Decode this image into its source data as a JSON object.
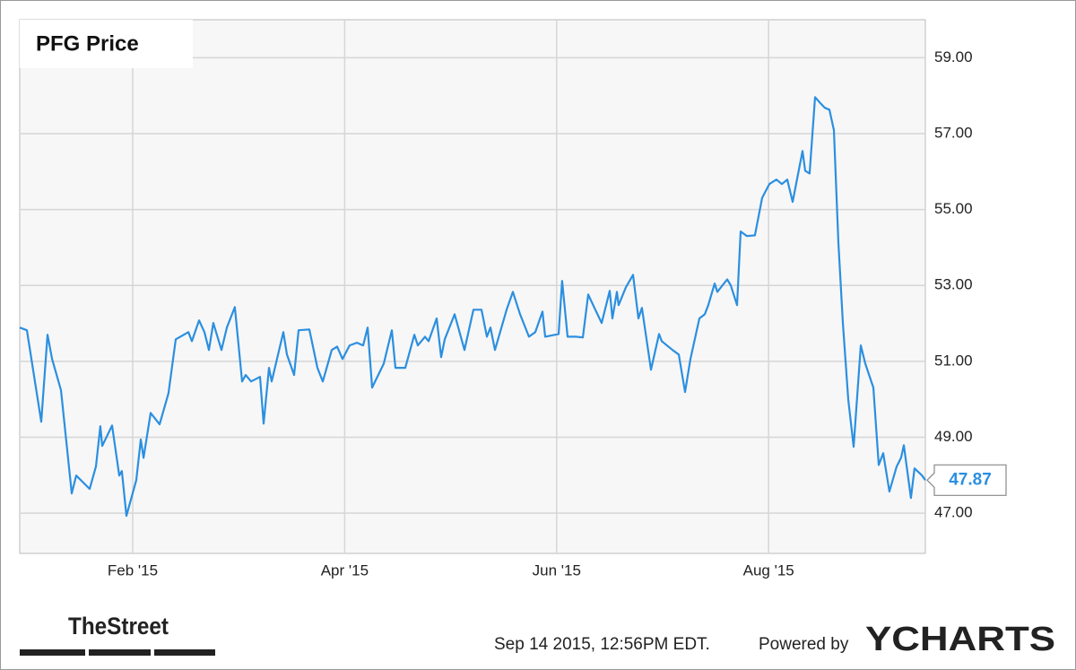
{
  "chart_data": {
    "type": "line",
    "title": "PFG Price",
    "color": "#2b8fe0",
    "grid": true,
    "x": [
      0.934,
      1.002,
      1.137,
      1.196,
      1.239,
      1.323,
      1.425,
      1.467,
      1.594,
      1.653,
      1.695,
      1.712,
      1.805,
      1.873,
      1.898,
      1.941,
      2.034,
      2.076,
      2.102,
      2.169,
      2.254,
      2.338,
      2.406,
      2.525,
      2.558,
      2.626,
      2.677,
      2.719,
      2.761,
      2.838,
      2.888,
      2.964,
      3.032,
      3.066,
      3.117,
      3.201,
      3.235,
      3.286,
      3.311,
      3.421,
      3.455,
      3.523,
      3.565,
      3.667,
      3.743,
      3.794,
      3.878,
      3.929,
      3.98,
      4.047,
      4.115,
      4.174,
      4.217,
      4.259,
      4.369,
      4.445,
      4.479,
      4.572,
      4.657,
      4.69,
      4.758,
      4.792,
      4.868,
      4.91,
      4.944,
      5.037,
      5.13,
      5.215,
      5.291,
      5.342,
      5.376,
      5.418,
      5.528,
      5.587,
      5.655,
      5.739,
      5.799,
      5.866,
      5.892,
      6.019,
      6.052,
      6.103,
      6.179,
      6.247,
      6.298,
      6.365,
      6.425,
      6.501,
      6.526,
      6.569,
      6.585,
      6.653,
      6.721,
      6.772,
      6.805,
      6.89,
      6.966,
      6.992,
      7.093,
      7.152,
      7.212,
      7.262,
      7.347,
      7.398,
      7.431,
      7.491,
      7.516,
      7.609,
      7.643,
      7.702,
      7.736,
      7.795,
      7.871,
      7.939,
      8.007,
      8.074,
      8.125,
      8.176,
      8.227,
      8.32,
      8.345,
      8.387,
      8.438,
      8.489,
      8.531,
      8.574,
      8.616,
      8.658,
      8.701,
      8.751,
      8.802,
      8.87,
      8.912,
      8.988,
      9.039,
      9.081,
      9.14,
      9.208,
      9.25,
      9.276,
      9.343,
      9.377,
      9.445,
      9.479
    ],
    "values": [
      51.89,
      51.82,
      49.41,
      51.7,
      51.06,
      50.24,
      47.52,
      47.99,
      47.64,
      48.23,
      49.29,
      48.77,
      49.31,
      47.99,
      48.11,
      46.93,
      47.87,
      48.94,
      48.46,
      49.64,
      49.34,
      50.16,
      51.58,
      51.77,
      51.53,
      52.08,
      51.77,
      51.3,
      52.01,
      51.3,
      51.89,
      52.43,
      50.47,
      50.64,
      50.47,
      50.59,
      49.36,
      50.83,
      50.47,
      51.77,
      51.18,
      50.64,
      51.82,
      51.84,
      50.83,
      50.47,
      51.3,
      51.39,
      51.06,
      51.42,
      51.49,
      51.42,
      51.89,
      50.31,
      50.94,
      51.82,
      50.83,
      50.83,
      51.7,
      51.42,
      51.65,
      51.53,
      52.13,
      51.11,
      51.58,
      52.24,
      51.3,
      52.36,
      52.36,
      51.65,
      51.89,
      51.3,
      52.36,
      52.83,
      52.24,
      51.65,
      51.77,
      52.31,
      51.65,
      51.72,
      53.12,
      51.65,
      51.65,
      51.63,
      52.76,
      52.36,
      52.01,
      52.86,
      52.13,
      52.83,
      52.48,
      52.95,
      53.28,
      52.13,
      52.41,
      50.78,
      51.72,
      51.53,
      51.3,
      51.18,
      50.19,
      51.06,
      52.13,
      52.24,
      52.48,
      53.05,
      52.83,
      53.16,
      53.0,
      52.48,
      54.42,
      54.3,
      54.32,
      55.31,
      55.67,
      55.79,
      55.67,
      55.79,
      55.2,
      56.54,
      56.02,
      55.95,
      57.96,
      57.8,
      57.68,
      57.63,
      57.09,
      54.13,
      52.01,
      50.0,
      48.75,
      51.42,
      50.94,
      50.31,
      48.27,
      48.58,
      47.57,
      48.23,
      48.46,
      48.79,
      47.4,
      48.18,
      48.0,
      47.87
    ],
    "xlim": [
      0.934,
      9.479
    ],
    "xticks": [
      {
        "value": 2,
        "label": "Feb '15"
      },
      {
        "value": 4,
        "label": "Apr '15"
      },
      {
        "value": 6,
        "label": "Jun '15"
      },
      {
        "value": 8,
        "label": "Aug '15"
      }
    ],
    "ylim": [
      45.94,
      60.0
    ],
    "yticks": [
      {
        "value": 47,
        "label": "47.00"
      },
      {
        "value": 49,
        "label": "49.00"
      },
      {
        "value": 51,
        "label": "51.00"
      },
      {
        "value": 53,
        "label": "53.00"
      },
      {
        "value": 55,
        "label": "55.00"
      },
      {
        "value": 57,
        "label": "57.00"
      },
      {
        "value": 59,
        "label": "59.00"
      }
    ]
  },
  "footer": {
    "source_logo": "TheStreet",
    "timestamp": "Sep 14 2015, 12:56PM EDT.",
    "powered_by": "Powered by",
    "brand": "YCHARTS"
  }
}
